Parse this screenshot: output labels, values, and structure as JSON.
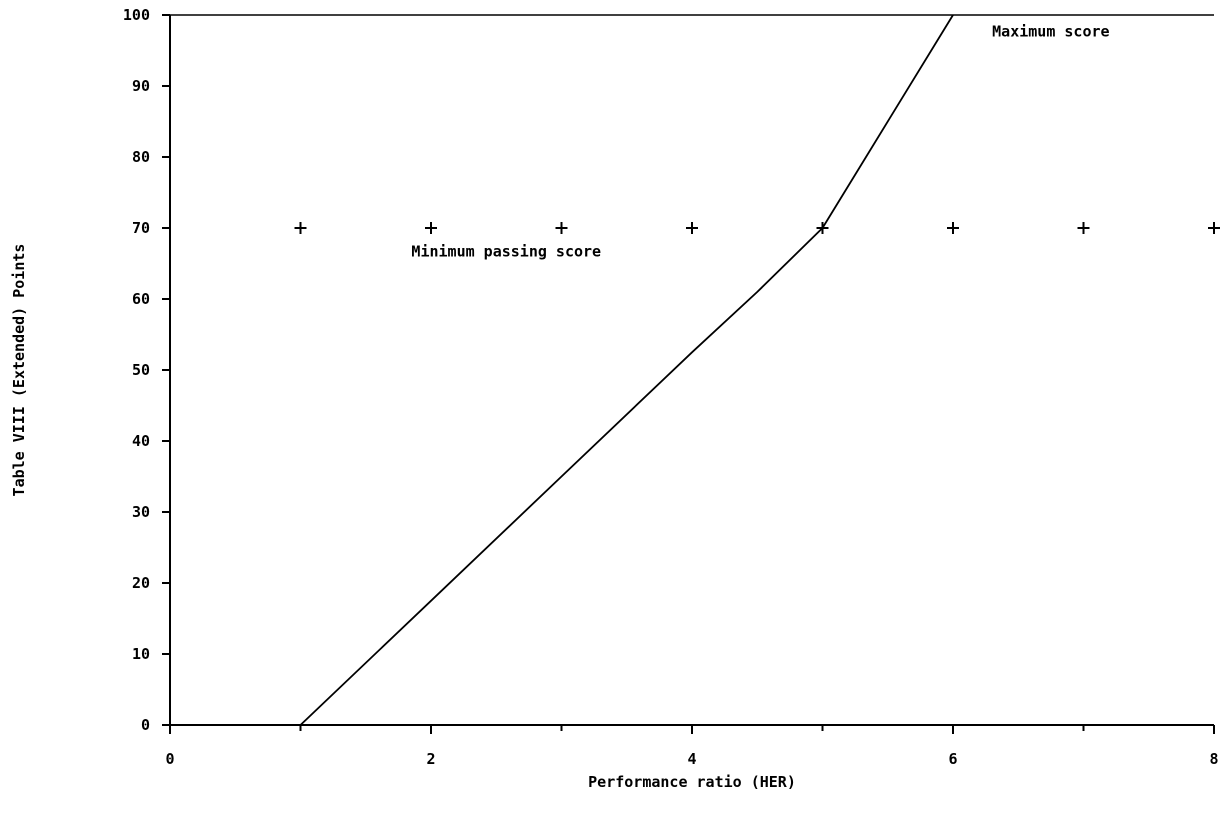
{
  "chart_data": {
    "type": "line",
    "title": "",
    "xlabel": "Performance ratio (HER)",
    "ylabel": "Table VIII (Extended) Points",
    "xlim": [
      0,
      8
    ],
    "ylim": [
      0,
      100
    ],
    "x_ticks": [
      0,
      2,
      4,
      6,
      8
    ],
    "y_ticks": [
      0,
      10,
      20,
      30,
      40,
      50,
      60,
      70,
      80,
      90,
      100
    ],
    "grid": false,
    "series": [
      {
        "style": "solid-line",
        "x": [
          0,
          1,
          2,
          3,
          4,
          4.5,
          5,
          6
        ],
        "y": [
          0,
          0,
          17.5,
          35,
          52.5,
          61,
          70,
          100
        ]
      },
      {
        "style": "plus-markers",
        "x": [
          1,
          2,
          3,
          4,
          5,
          6,
          7,
          8
        ],
        "y": [
          70,
          70,
          70,
          70,
          70,
          70,
          70,
          70
        ]
      }
    ],
    "annotations": [
      {
        "text": "Maximum score",
        "x": 6.3,
        "y": 97
      },
      {
        "text": "Minimum passing score",
        "x": 1.85,
        "y": 66
      }
    ]
  }
}
